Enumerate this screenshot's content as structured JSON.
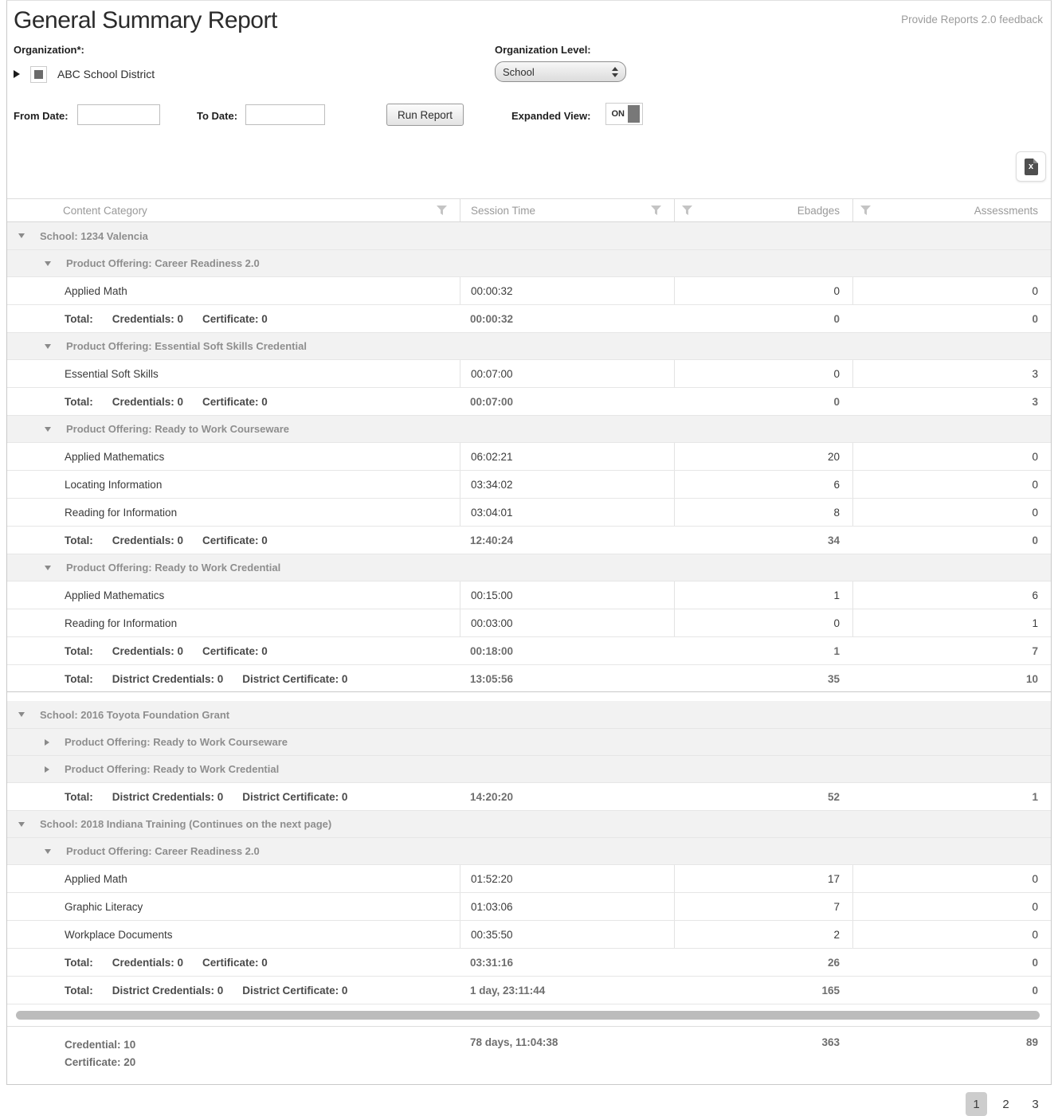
{
  "header": {
    "title": "General Summary Report",
    "feedback_link": "Provide Reports 2.0 feedback"
  },
  "filters": {
    "organization_label": "Organization*:",
    "organization_tree_item": "ABC School District",
    "organization_level_label": "Organization Level:",
    "organization_level_value": "School",
    "from_date_label": "From Date:",
    "from_date_value": "",
    "to_date_label": "To Date:",
    "to_date_value": "",
    "run_report_label": "Run Report",
    "expanded_view_label": "Expanded View:",
    "expanded_view_state": "ON"
  },
  "toolbar": {
    "export_icon": "excel-export-icon",
    "export_icon_glyph": "x"
  },
  "table": {
    "columns": [
      {
        "label": "Content Category",
        "filter_icon_side": "right"
      },
      {
        "label": "Session Time",
        "filter_icon_side": "right"
      },
      {
        "label": "Ebadges",
        "filter_icon_side": "left"
      },
      {
        "label": "Assessments",
        "filter_icon_side": "left"
      }
    ],
    "blocks": [
      {
        "rows": [
          {
            "type": "school",
            "expanded": true,
            "label": "School: 1234 Valencia"
          },
          {
            "type": "offering",
            "expanded": true,
            "label": "Product Offering: Career Readiness 2.0"
          },
          {
            "type": "data",
            "label": "Applied Math",
            "session": "00:00:32",
            "ebadges": "0",
            "assessments": "0"
          },
          {
            "type": "total",
            "label": "Total:",
            "details": [
              "Credentials: 0",
              "Certificate: 0"
            ],
            "session": "00:00:32",
            "ebadges": "0",
            "assessments": "0"
          },
          {
            "type": "offering",
            "expanded": true,
            "label": "Product Offering: Essential Soft Skills Credential"
          },
          {
            "type": "data",
            "label": "Essential Soft Skills",
            "session": "00:07:00",
            "ebadges": "0",
            "assessments": "3"
          },
          {
            "type": "total",
            "label": "Total:",
            "details": [
              "Credentials: 0",
              "Certificate: 0"
            ],
            "session": "00:07:00",
            "ebadges": "0",
            "assessments": "3"
          },
          {
            "type": "offering",
            "expanded": true,
            "label": "Product Offering: Ready to Work Courseware"
          },
          {
            "type": "data",
            "label": "Applied Mathematics",
            "session": "06:02:21",
            "ebadges": "20",
            "assessments": "0"
          },
          {
            "type": "data",
            "label": "Locating Information",
            "session": "03:34:02",
            "ebadges": "6",
            "assessments": "0"
          },
          {
            "type": "data",
            "label": "Reading for Information",
            "session": "03:04:01",
            "ebadges": "8",
            "assessments": "0"
          },
          {
            "type": "total",
            "label": "Total:",
            "details": [
              "Credentials: 0",
              "Certificate: 0"
            ],
            "session": "12:40:24",
            "ebadges": "34",
            "assessments": "0"
          },
          {
            "type": "offering",
            "expanded": true,
            "label": "Product Offering: Ready to Work Credential"
          },
          {
            "type": "data",
            "label": "Applied Mathematics",
            "session": "00:15:00",
            "ebadges": "1",
            "assessments": "6"
          },
          {
            "type": "data",
            "label": "Reading for Information",
            "session": "00:03:00",
            "ebadges": "0",
            "assessments": "1"
          },
          {
            "type": "total",
            "label": "Total:",
            "details": [
              "Credentials: 0",
              "Certificate: 0"
            ],
            "session": "00:18:00",
            "ebadges": "1",
            "assessments": "7"
          },
          {
            "type": "district_total",
            "label": "Total:",
            "details": [
              "District Credentials: 0",
              "District Certificate: 0"
            ],
            "session": "13:05:56",
            "ebadges": "35",
            "assessments": "10"
          }
        ]
      },
      {
        "rows": [
          {
            "type": "school",
            "expanded": true,
            "label": "School: 2016 Toyota Foundation Grant"
          },
          {
            "type": "offering",
            "expanded": false,
            "label": "Product Offering: Ready to Work Courseware"
          },
          {
            "type": "offering",
            "expanded": false,
            "label": "Product Offering: Ready to Work Credential"
          },
          {
            "type": "district_total",
            "label": "Total:",
            "details": [
              "District Credentials: 0",
              "District Certificate: 0"
            ],
            "session": "14:20:20",
            "ebadges": "52",
            "assessments": "1"
          },
          {
            "type": "school",
            "expanded": true,
            "label": "School: 2018 Indiana Training (Continues on the next page)"
          },
          {
            "type": "offering",
            "expanded": true,
            "label": "Product Offering: Career Readiness 2.0"
          },
          {
            "type": "data",
            "label": "Applied Math",
            "session": "01:52:20",
            "ebadges": "17",
            "assessments": "0"
          },
          {
            "type": "data",
            "label": "Graphic Literacy",
            "session": "01:03:06",
            "ebadges": "7",
            "assessments": "0"
          },
          {
            "type": "data",
            "label": "Workplace Documents",
            "session": "00:35:50",
            "ebadges": "2",
            "assessments": "0"
          },
          {
            "type": "total",
            "label": "Total:",
            "details": [
              "Credentials: 0",
              "Certificate: 0"
            ],
            "session": "03:31:16",
            "ebadges": "26",
            "assessments": "0"
          },
          {
            "type": "district_total",
            "label": "Total:",
            "details": [
              "District Credentials: 0",
              "District Certificate: 0"
            ],
            "session": "1 day, 23:11:44",
            "ebadges": "165",
            "assessments": "0"
          }
        ]
      }
    ],
    "footer": {
      "credential": "Credential: 10",
      "certificate": "Certificate: 20",
      "session_time": "78 days, 11:04:38",
      "ebadges": "363",
      "assessments": "89"
    }
  },
  "pagination": {
    "pages": [
      "1",
      "2",
      "3"
    ],
    "active": "1"
  }
}
